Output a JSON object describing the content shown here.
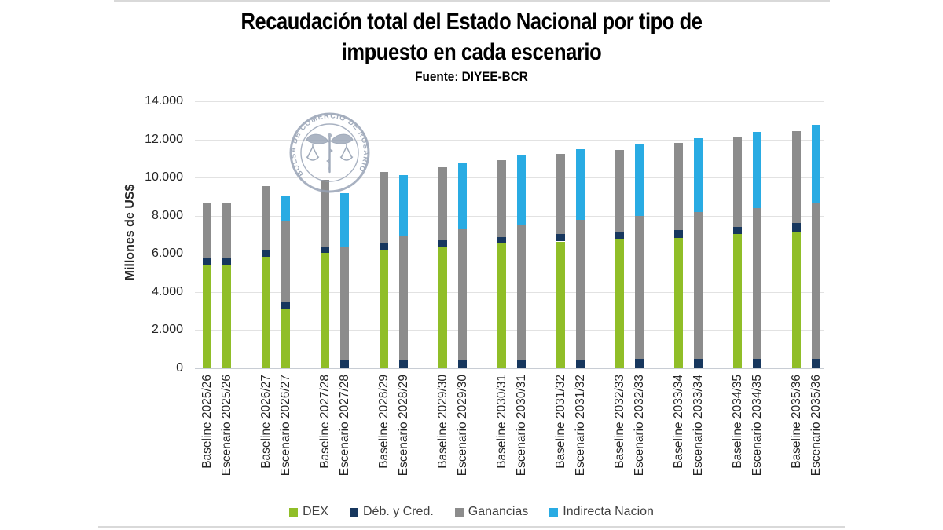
{
  "header": {
    "title_line1": "Recaudación total del Estado Nacional por tipo de",
    "title_line2": "impuesto en cada escenario",
    "subtitle": "Fuente: DIYEE-BCR"
  },
  "watermark": {
    "text": "BOLSA DE COMERCIO DE ROSARIO"
  },
  "chart_data": {
    "type": "bar",
    "stacked": true,
    "title": "Recaudación total del Estado Nacional por tipo de impuesto en cada escenario",
    "subtitle": "Fuente: DIYEE-BCR",
    "xlabel": "",
    "ylabel": "Millones de US$",
    "ylim": [
      0,
      14000
    ],
    "ytick_labels": [
      "0",
      "2.000",
      "4.000",
      "6.000",
      "8.000",
      "10.000",
      "12.000",
      "14.000"
    ],
    "grid": true,
    "legend_position": "bottom",
    "categories": [
      "Baseline 2025/26",
      "Escenario 2025/26",
      "Baseline 2026/27",
      "Escenario 2026/27",
      "Baseline 2027/28",
      "Escenario 2027/28",
      "Baseline 2028/29",
      "Escenario 2028/29",
      "Baseline 2029/30",
      "Escenario 2029/30",
      "Baseline 2030/31",
      "Escenario 2030/31",
      "Baseline 2031/32",
      "Escenario 2031/32",
      "Baseline 2032/33",
      "Escenario 2032/33",
      "Baseline 2033/34",
      "Escenario 2033/34",
      "Baseline 2034/35",
      "Escenario 2034/35",
      "Baseline 2035/36",
      "Escenario 2035/36"
    ],
    "series": [
      {
        "name": "DEX",
        "color": "#90BE28",
        "values": [
          5400,
          5400,
          5850,
          3100,
          6050,
          0,
          6200,
          0,
          6350,
          0,
          6550,
          0,
          6650,
          0,
          6750,
          0,
          6850,
          0,
          7050,
          0,
          7150,
          0
        ]
      },
      {
        "name": "Déb. y Cred.",
        "color": "#17375E",
        "values": [
          350,
          350,
          350,
          350,
          350,
          440,
          350,
          450,
          360,
          450,
          340,
          460,
          380,
          470,
          370,
          480,
          400,
          480,
          350,
          480,
          450,
          500
        ]
      },
      {
        "name": "Ganancias",
        "color": "#8C8C8C",
        "values": [
          2900,
          2900,
          3350,
          4300,
          3500,
          5910,
          3750,
          6500,
          3840,
          6850,
          4010,
          7090,
          4220,
          7330,
          4330,
          7520,
          4550,
          7720,
          4700,
          7920,
          4850,
          8200
        ]
      },
      {
        "name": "Indirecta Nacion",
        "color": "#29ABE3",
        "values": [
          0,
          0,
          0,
          1300,
          0,
          2850,
          0,
          3200,
          0,
          3500,
          0,
          3650,
          0,
          3700,
          0,
          3750,
          0,
          3850,
          0,
          4000,
          0,
          4050
        ]
      }
    ]
  }
}
